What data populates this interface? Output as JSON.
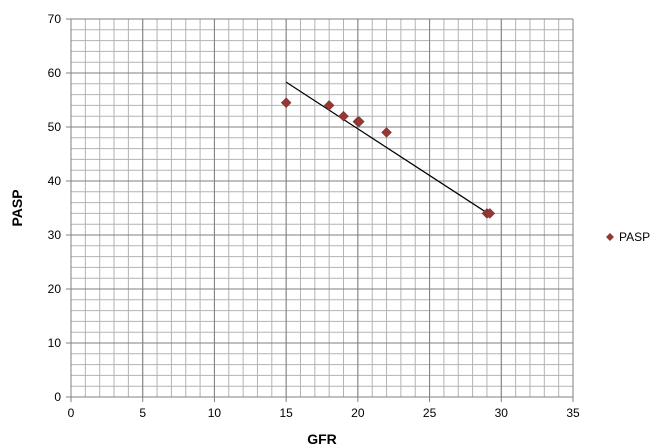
{
  "chart_data": {
    "type": "scatter",
    "xlabel": "GFR",
    "ylabel": "PASP",
    "xlim": [
      0,
      35
    ],
    "ylim": [
      0,
      70
    ],
    "x_ticks": [
      0,
      5,
      10,
      15,
      20,
      25,
      30,
      35
    ],
    "y_ticks": [
      0,
      10,
      20,
      30,
      40,
      50,
      60,
      70
    ],
    "grid": true,
    "minor_grid": true,
    "legend": "right",
    "series": [
      {
        "name": "PASP",
        "marker": "diamond",
        "color": "#953735",
        "points": [
          {
            "x": 15,
            "y": 54.5
          },
          {
            "x": 18,
            "y": 54
          },
          {
            "x": 19,
            "y": 52
          },
          {
            "x": 20,
            "y": 51
          },
          {
            "x": 20.1,
            "y": 51
          },
          {
            "x": 22,
            "y": 49
          },
          {
            "x": 29,
            "y": 34
          },
          {
            "x": 29.2,
            "y": 34
          }
        ]
      }
    ],
    "trendline": {
      "type": "linear",
      "color": "#000000",
      "from": {
        "x": 15,
        "y": 58.3
      },
      "to": {
        "x": 29.3,
        "y": 33.6
      }
    }
  }
}
